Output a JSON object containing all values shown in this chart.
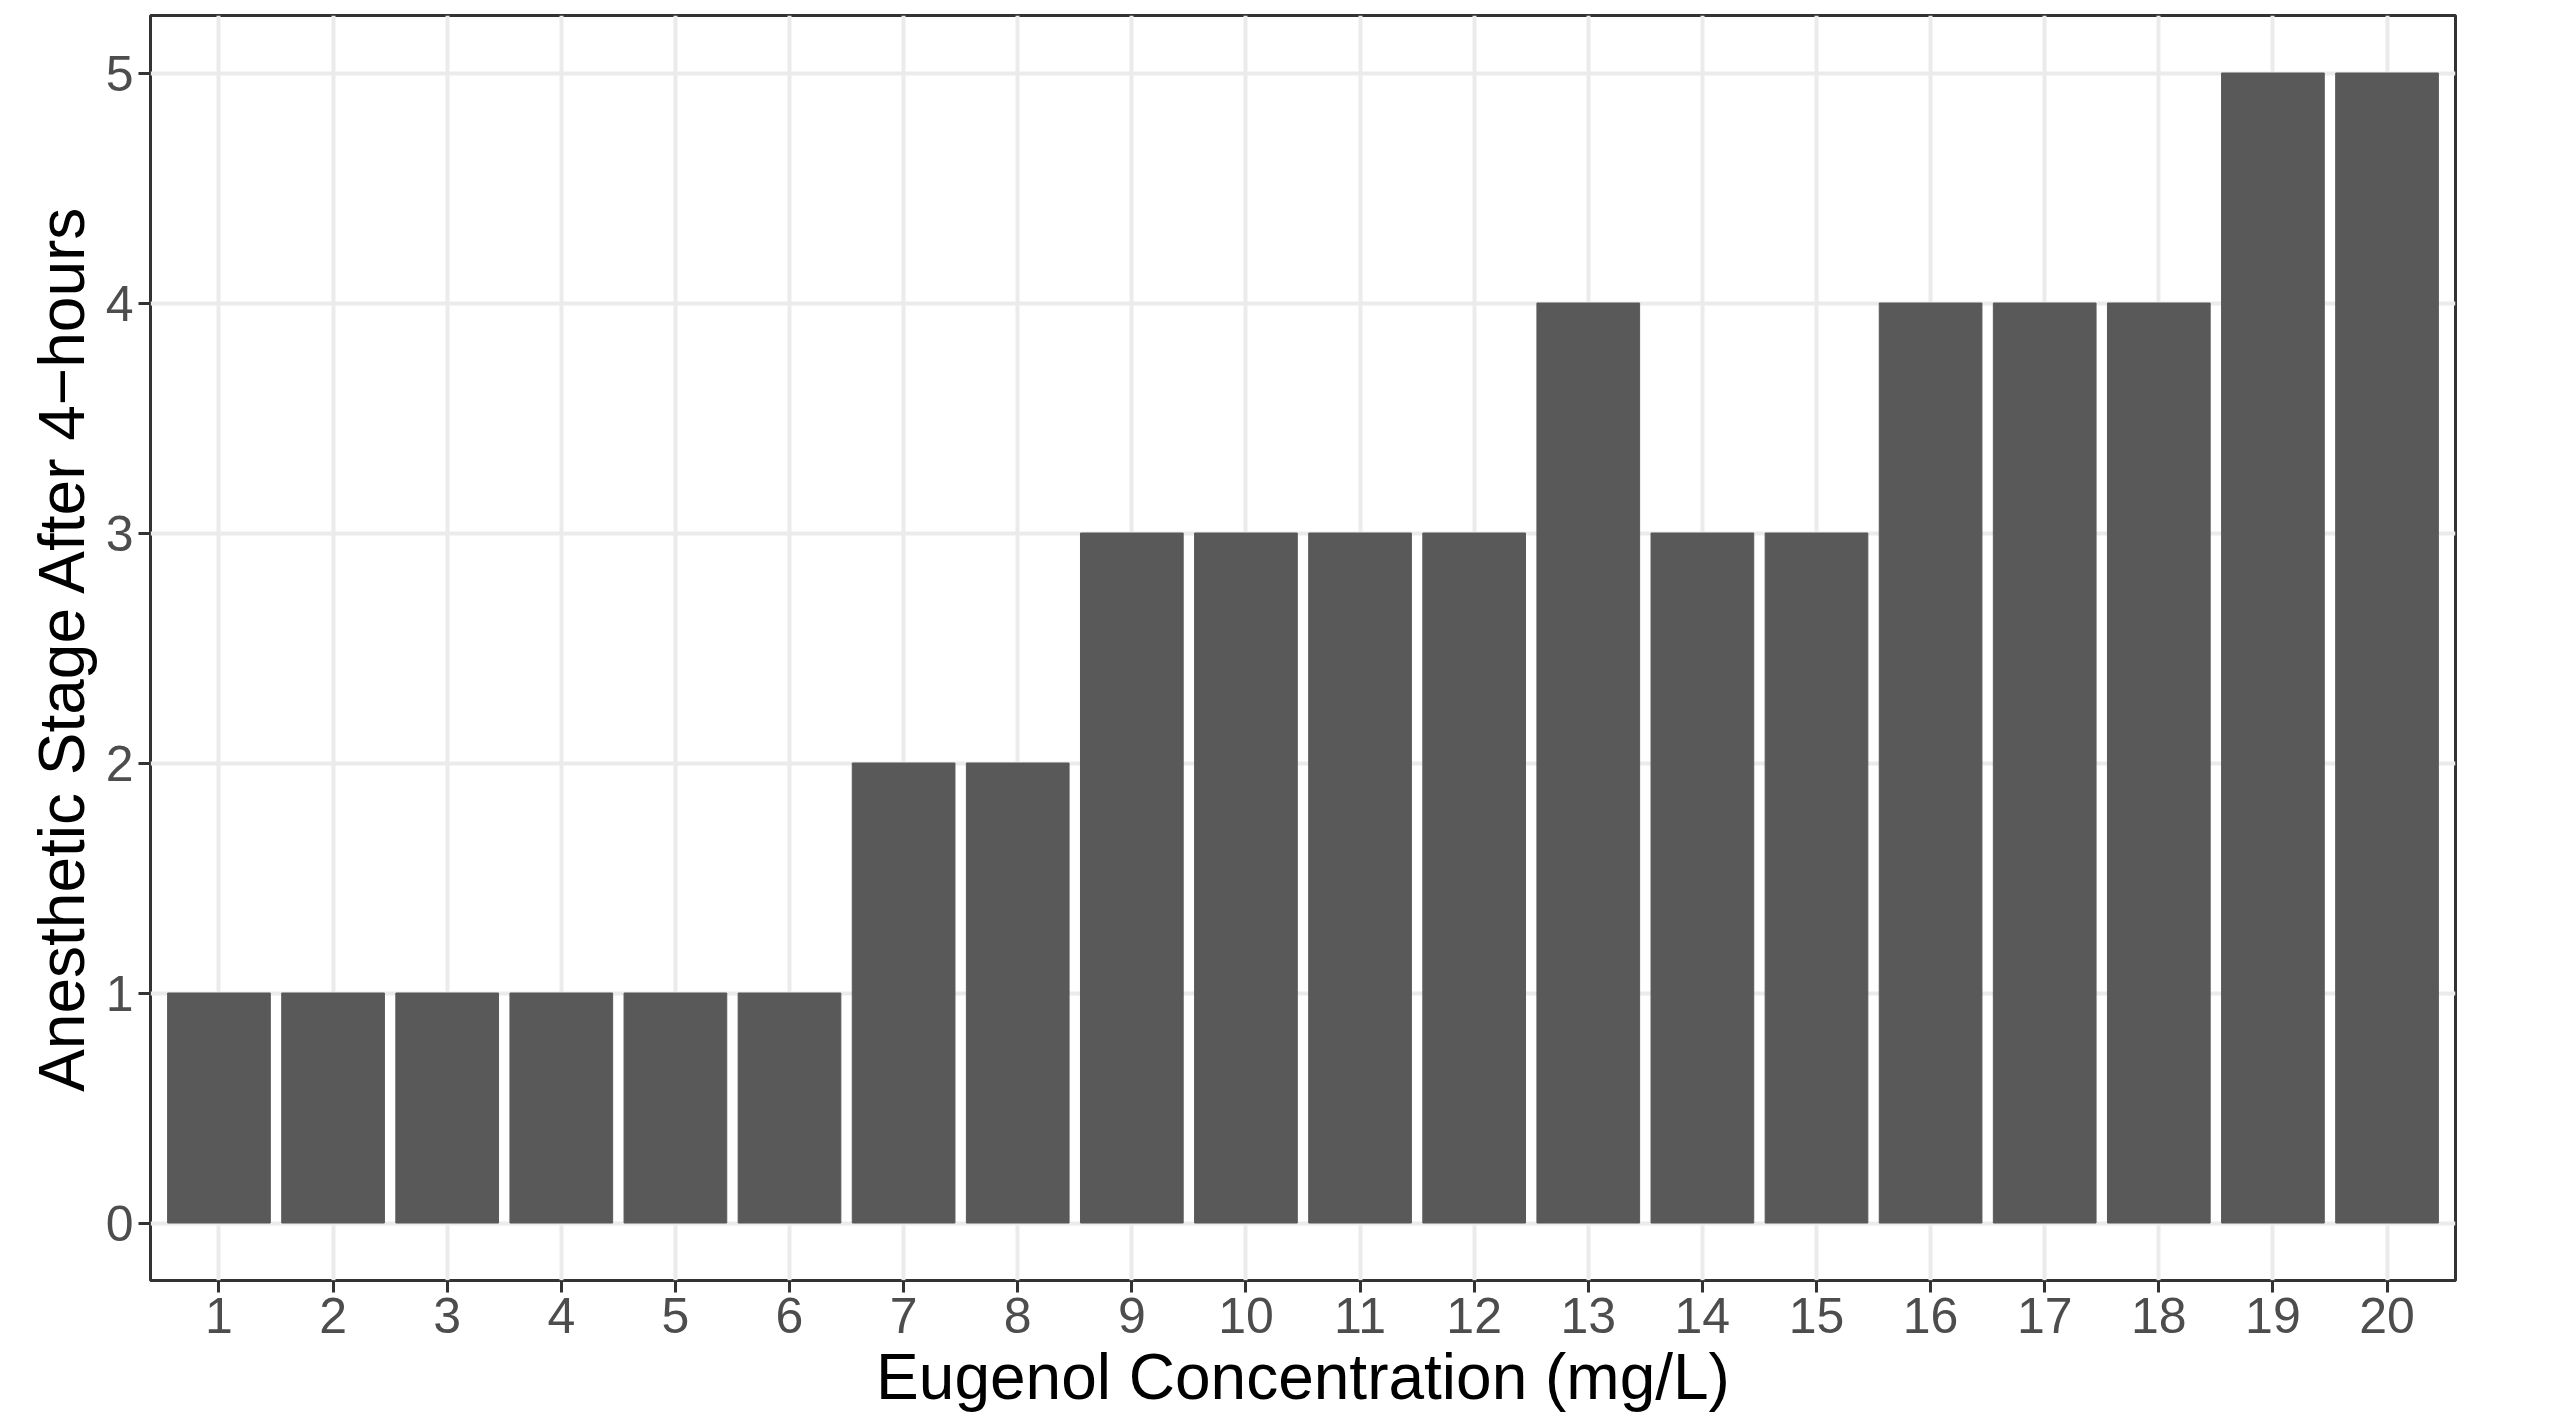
{
  "chart_data": {
    "type": "bar",
    "xlabel": "Eugenol Concentration (mg/L)",
    "ylabel": "Anesthetic Stage After 4−hours",
    "x": [
      1,
      2,
      3,
      4,
      5,
      6,
      7,
      8,
      9,
      10,
      11,
      12,
      13,
      14,
      15,
      16,
      17,
      18,
      19,
      20
    ],
    "values": [
      1,
      1,
      1,
      1,
      1,
      1,
      2,
      2,
      3,
      3,
      3,
      3,
      4,
      3,
      3,
      4,
      4,
      4,
      5,
      5
    ],
    "color": "#595959",
    "xlim": [
      0.4,
      20.6
    ],
    "xticks": [
      1,
      2,
      3,
      4,
      5,
      6,
      7,
      8,
      9,
      10,
      11,
      12,
      13,
      14,
      15,
      16,
      17,
      18,
      19,
      20
    ],
    "ylim": [
      -0.25,
      5.25
    ],
    "yticks": [
      0,
      1,
      2,
      3,
      4,
      5
    ],
    "grid": true
  }
}
